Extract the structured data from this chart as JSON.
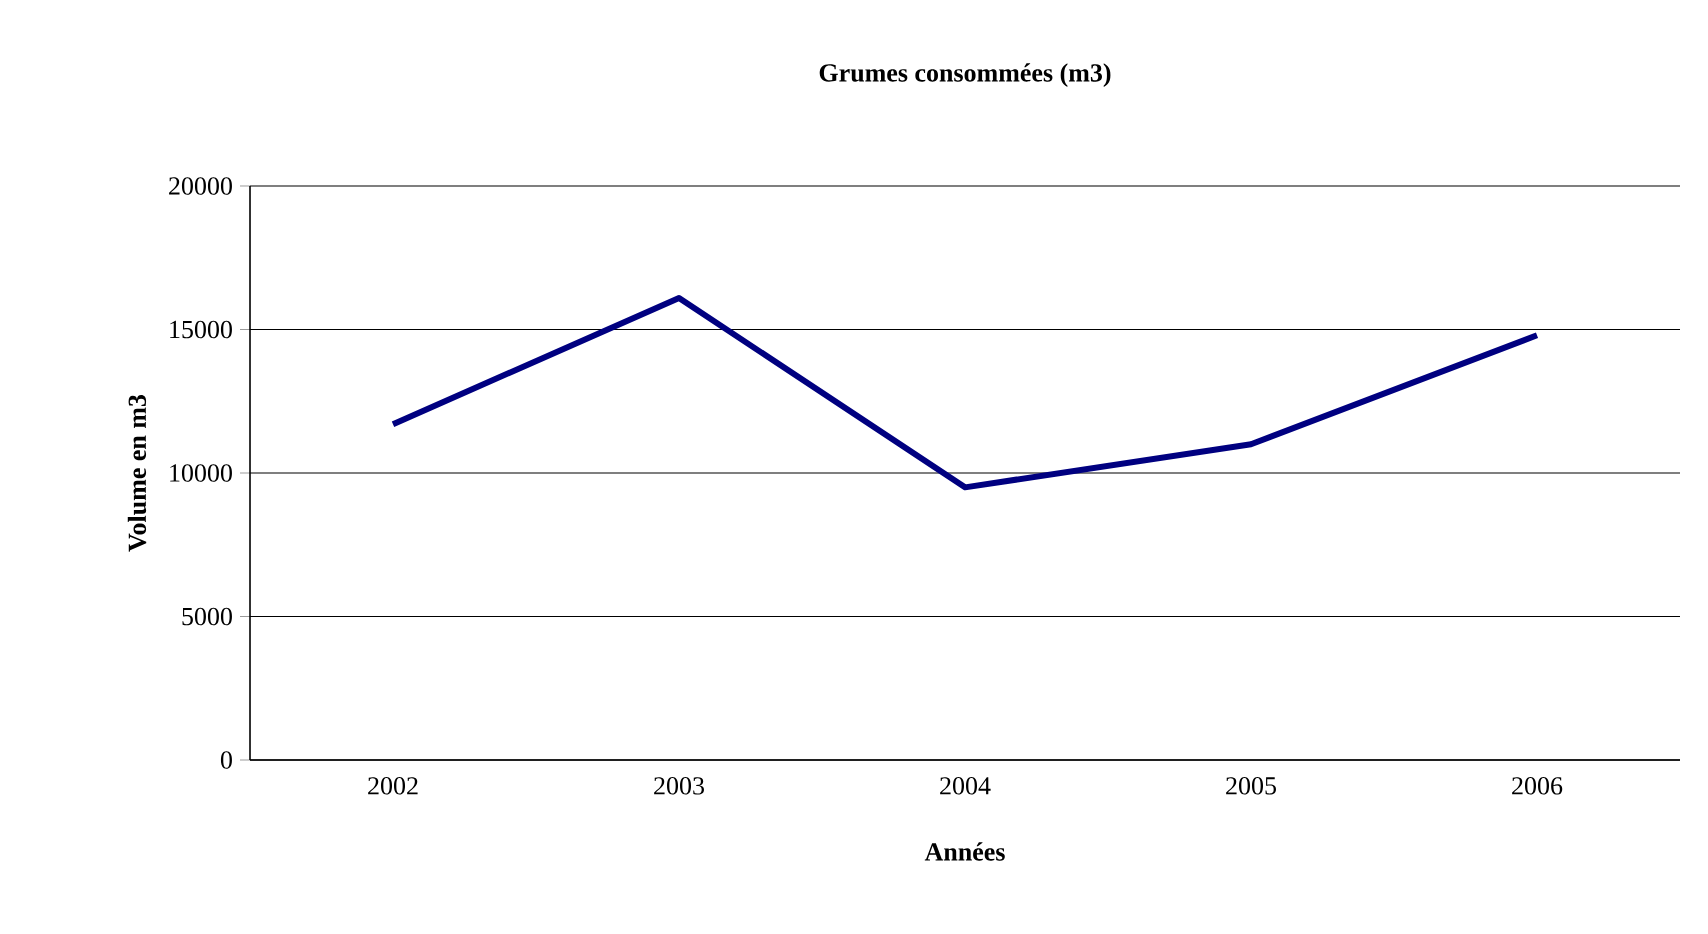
{
  "chart_data": {
    "type": "line",
    "title": "Grumes  consommées (m3)",
    "xlabel": "Années",
    "ylabel": "Volume en m3",
    "categories": [
      "2002",
      "2003",
      "2004",
      "2005",
      "2006"
    ],
    "series": [
      {
        "color": "#000080",
        "values": [
          11700,
          16100,
          9500,
          11000,
          14800
        ]
      }
    ],
    "ylim": [
      0,
      20000
    ],
    "yticks": [
      0,
      5000,
      10000,
      15000,
      20000
    ],
    "grid": "y",
    "marker": "none",
    "line_style": "solid"
  }
}
